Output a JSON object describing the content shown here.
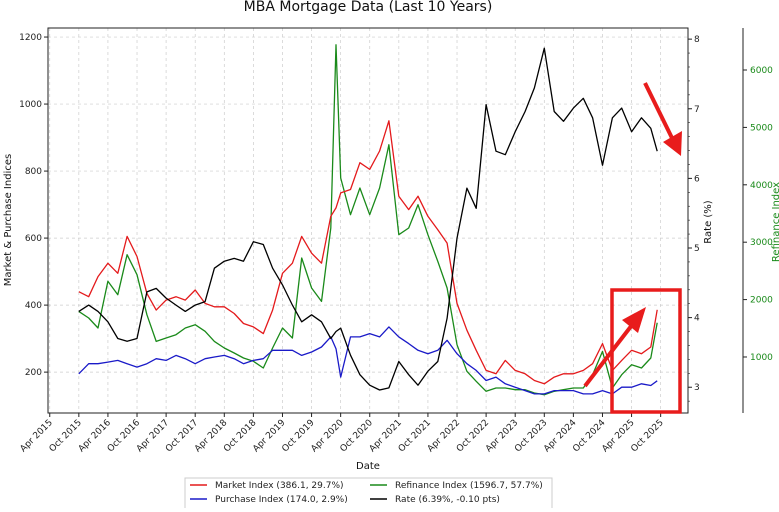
{
  "chart_data": {
    "type": "line",
    "title": "MBA Mortgage Data (Last 10 Years)",
    "xlabel": "Date",
    "ylabel_left": "Market & Purchase Indices",
    "ylabel_right": "Rate (%)",
    "ylabel_right2": "Refinance Index",
    "grid": true,
    "legend_position": "bottom-center",
    "xlim": [
      2015.22,
      2026.22
    ],
    "ylim_left": [
      78,
      1227
    ],
    "ylim_rate": [
      2.63,
      8.16
    ],
    "ylim_refinance": [
      24,
      6732
    ],
    "x_ticks": [
      "Apr 2015",
      "Oct 2015",
      "Apr 2016",
      "Oct 2016",
      "Apr 2017",
      "Oct 2017",
      "Apr 2018",
      "Oct 2018",
      "Apr 2019",
      "Oct 2019",
      "Apr 2020",
      "Oct 2020",
      "Apr 2021",
      "Oct 2021",
      "Apr 2022",
      "Oct 2022",
      "Apr 2023",
      "Oct 2023",
      "Apr 2024",
      "Oct 2024",
      "Apr 2025",
      "Oct 2025"
    ],
    "y_ticks_left": [
      200,
      400,
      600,
      800,
      1000,
      1200
    ],
    "y_ticks_rate": [
      3,
      4,
      5,
      6,
      7,
      8
    ],
    "y_ticks_refinance": [
      1000,
      2000,
      3000,
      4000,
      5000,
      6000
    ],
    "x": [
      2015.75,
      2015.92,
      2016.08,
      2016.25,
      2016.42,
      2016.58,
      2016.75,
      2016.92,
      2017.08,
      2017.25,
      2017.42,
      2017.58,
      2017.75,
      2017.92,
      2018.08,
      2018.25,
      2018.42,
      2018.58,
      2018.75,
      2018.92,
      2019.08,
      2019.25,
      2019.42,
      2019.58,
      2019.75,
      2019.92,
      2020.08,
      2020.17,
      2020.25,
      2020.42,
      2020.58,
      2020.75,
      2020.92,
      2021.08,
      2021.25,
      2021.42,
      2021.58,
      2021.75,
      2021.92,
      2022.08,
      2022.25,
      2022.42,
      2022.58,
      2022.75,
      2022.92,
      2023.08,
      2023.25,
      2023.42,
      2023.58,
      2023.75,
      2023.92,
      2024.08,
      2024.25,
      2024.42,
      2024.58,
      2024.75,
      2024.92,
      2025.08,
      2025.25,
      2025.42,
      2025.58,
      2025.69
    ],
    "series": [
      {
        "name": "Market Index",
        "legend": "Market Index (386.1, 29.7%)",
        "axis": "left",
        "color": "#e41a1c",
        "values": [
          440,
          425,
          485,
          525,
          495,
          605,
          545,
          435,
          385,
          415,
          425,
          415,
          445,
          405,
          395,
          395,
          375,
          345,
          335,
          315,
          385,
          495,
          525,
          605,
          555,
          525,
          665,
          690,
          735,
          745,
          825,
          805,
          860,
          950,
          725,
          685,
          725,
          665,
          625,
          585,
          405,
          325,
          265,
          205,
          195,
          235,
          205,
          195,
          175,
          165,
          185,
          195,
          195,
          205,
          225,
          285,
          205,
          235,
          265,
          255,
          275,
          386.1
        ]
      },
      {
        "name": "Purchase Index",
        "legend": "Purchase Index (174.0, 2.9%)",
        "axis": "left",
        "color": "#1a1ac8",
        "values": [
          195,
          225,
          225,
          230,
          235,
          225,
          215,
          225,
          240,
          235,
          250,
          240,
          225,
          240,
          245,
          250,
          240,
          225,
          235,
          240,
          265,
          265,
          265,
          250,
          260,
          275,
          305,
          270,
          185,
          305,
          305,
          315,
          305,
          335,
          305,
          285,
          265,
          255,
          265,
          295,
          255,
          225,
          205,
          175,
          185,
          165,
          155,
          145,
          135,
          135,
          145,
          145,
          145,
          135,
          135,
          145,
          135,
          155,
          155,
          165,
          160,
          174.0
        ]
      },
      {
        "name": "Refinance Index",
        "legend": "Refinance Index (1596.7, 57.7%)",
        "axis": "refinance",
        "color": "#1a8a1a",
        "values": [
          1795,
          1680,
          1505,
          2318,
          2086,
          2782,
          2434,
          1737,
          1272,
          1330,
          1389,
          1505,
          1563,
          1447,
          1272,
          1156,
          1069,
          982,
          924,
          808,
          1156,
          1505,
          1330,
          2724,
          2202,
          1969,
          3247,
          6440,
          4118,
          3479,
          3944,
          3479,
          3944,
          4699,
          3131,
          3247,
          3653,
          3131,
          2666,
          2202,
          1214,
          750,
          576,
          402,
          460,
          460,
          430,
          430,
          372,
          343,
          402,
          430,
          460,
          460,
          692,
          1098,
          460,
          692,
          866,
          808,
          982,
          1596.7
        ]
      },
      {
        "name": "Rate",
        "legend": "Rate (6.39%, -0.10 pts)",
        "axis": "rate",
        "color": "#000000",
        "values": [
          4.09,
          4.18,
          4.09,
          3.94,
          3.7,
          3.66,
          3.7,
          4.37,
          4.42,
          4.28,
          4.18,
          4.09,
          4.18,
          4.23,
          4.71,
          4.81,
          4.85,
          4.81,
          5.09,
          5.05,
          4.71,
          4.47,
          4.18,
          3.94,
          4.04,
          3.94,
          3.7,
          3.8,
          3.85,
          3.46,
          3.18,
          3.03,
          2.96,
          2.99,
          3.37,
          3.18,
          3.03,
          3.23,
          3.37,
          3.99,
          5.14,
          5.86,
          5.57,
          7.06,
          6.39,
          6.34,
          6.67,
          6.96,
          7.3,
          7.87,
          6.96,
          6.82,
          7.01,
          7.15,
          6.87,
          6.19,
          6.87,
          7.01,
          6.67,
          6.87,
          6.72,
          6.39
        ]
      }
    ],
    "annotation_color": "#e81c1c"
  }
}
